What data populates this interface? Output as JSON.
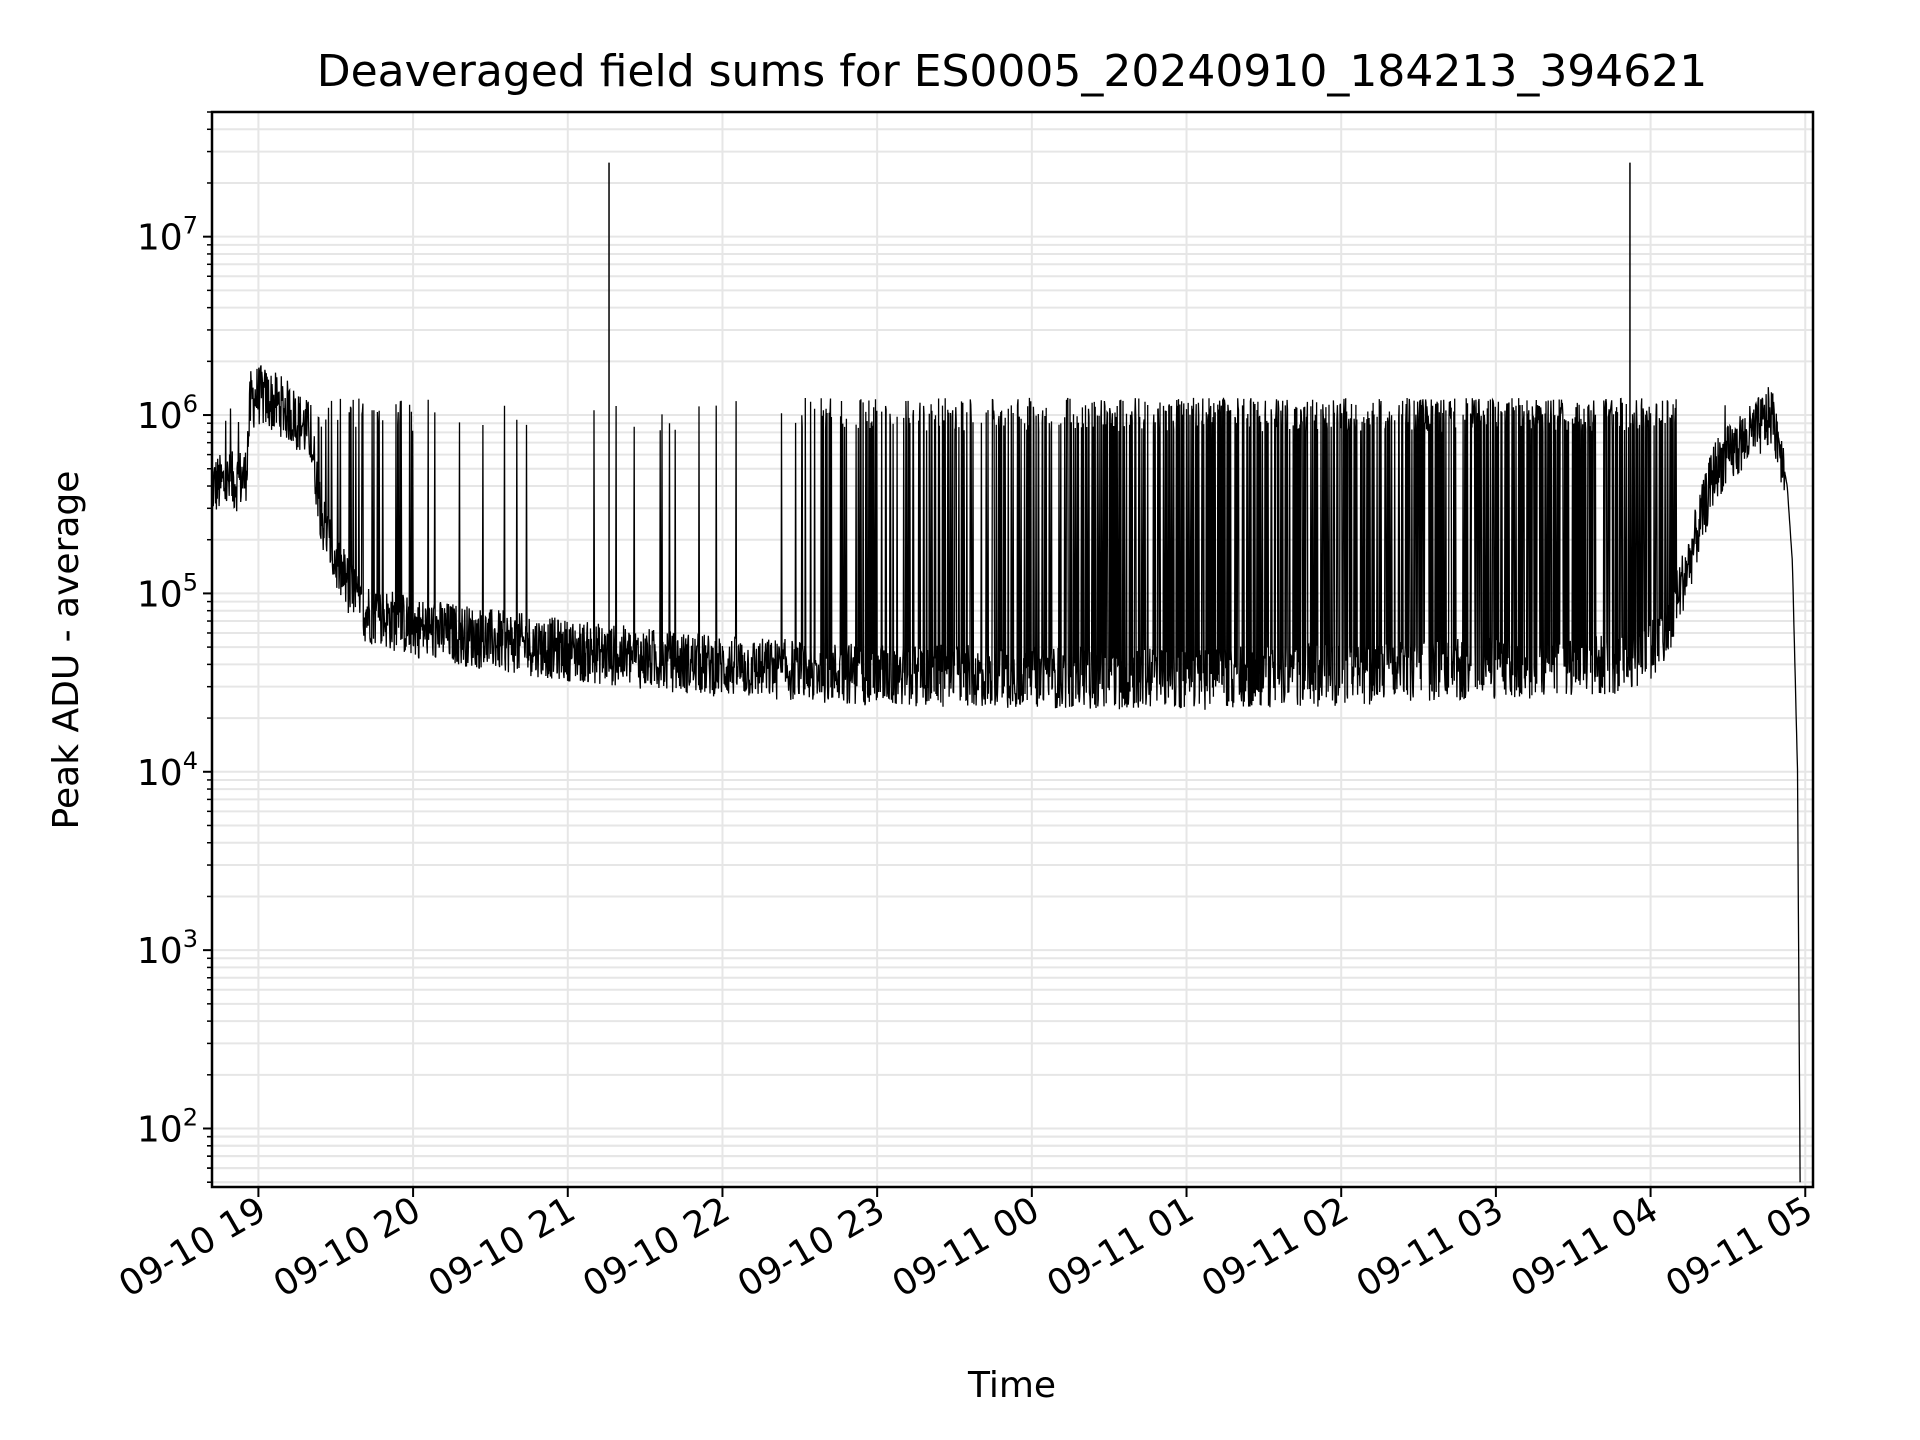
{
  "chart_data": {
    "type": "line",
    "title": "Deaveraged field sums for ES0005_20240910_184213_394621",
    "xlabel": "Time",
    "ylabel": "Peak ADU - average",
    "y_scale": "log",
    "ylim": [
      47,
      50000000
    ],
    "xlim": [
      "2024-09-10 18:42",
      "2024-09-11 05:03"
    ],
    "grid": true,
    "line_color": "#000000",
    "grid_color": "#e6e6e6",
    "x_ticks": [
      {
        "label": "09-10 19",
        "time": "2024-09-10 19:00"
      },
      {
        "label": "09-10 20",
        "time": "2024-09-10 20:00"
      },
      {
        "label": "09-10 21",
        "time": "2024-09-10 21:00"
      },
      {
        "label": "09-10 22",
        "time": "2024-09-10 22:00"
      },
      {
        "label": "09-10 23",
        "time": "2024-09-10 23:00"
      },
      {
        "label": "09-11 00",
        "time": "2024-09-11 00:00"
      },
      {
        "label": "09-11 01",
        "time": "2024-09-11 01:00"
      },
      {
        "label": "09-11 02",
        "time": "2024-09-11 02:00"
      },
      {
        "label": "09-11 03",
        "time": "2024-09-11 03:00"
      },
      {
        "label": "09-11 04",
        "time": "2024-09-11 04:00"
      },
      {
        "label": "09-11 05",
        "time": "2024-09-11 05:00"
      }
    ],
    "y_ticks": [
      {
        "base": "10",
        "exp": "2",
        "value": 100
      },
      {
        "base": "10",
        "exp": "3",
        "value": 1000
      },
      {
        "base": "10",
        "exp": "4",
        "value": 10000
      },
      {
        "base": "10",
        "exp": "5",
        "value": 100000
      },
      {
        "base": "10",
        "exp": "6",
        "value": 1000000
      },
      {
        "base": "10",
        "exp": "7",
        "value": 10000000
      }
    ],
    "series": [
      {
        "baseline": [
          [
            "2024-09-10 18:42",
            400000
          ],
          [
            "2024-09-10 18:50",
            420000
          ],
          [
            "2024-09-10 18:55",
            450000
          ],
          [
            "2024-09-10 18:57",
            1200000
          ],
          [
            "2024-09-10 19:00",
            1300000
          ],
          [
            "2024-09-10 19:10",
            1100000
          ],
          [
            "2024-09-10 19:20",
            800000
          ],
          [
            "2024-09-10 19:25",
            250000
          ],
          [
            "2024-09-10 19:30",
            150000
          ],
          [
            "2024-09-10 19:40",
            80000
          ],
          [
            "2024-09-10 20:00",
            65000
          ],
          [
            "2024-09-10 20:30",
            55000
          ],
          [
            "2024-09-10 21:00",
            48000
          ],
          [
            "2024-09-10 21:30",
            43000
          ],
          [
            "2024-09-10 22:00",
            39000
          ],
          [
            "2024-09-10 23:00",
            35000
          ],
          [
            "2024-09-11 00:00",
            34000
          ],
          [
            "2024-09-11 01:00",
            33000
          ],
          [
            "2024-09-11 02:00",
            35000
          ],
          [
            "2024-09-11 03:00",
            38000
          ],
          [
            "2024-09-11 03:50",
            40000
          ],
          [
            "2024-09-11 04:05",
            55000
          ],
          [
            "2024-09-11 04:15",
            150000
          ],
          [
            "2024-09-11 04:25",
            500000
          ],
          [
            "2024-09-11 04:40",
            800000
          ],
          [
            "2024-09-11 04:47",
            1000000
          ],
          [
            "2024-09-11 04:50",
            700000
          ],
          [
            "2024-09-11 04:53",
            400000
          ],
          [
            "2024-09-11 04:55",
            150000
          ],
          [
            "2024-09-11 04:57",
            10000
          ],
          [
            "2024-09-11 04:58",
            50
          ]
        ],
        "spikes": [
          [
            "2024-09-10 21:16",
            26000000
          ],
          [
            "2024-09-11 03:52",
            26000000
          ]
        ]
      }
    ]
  }
}
